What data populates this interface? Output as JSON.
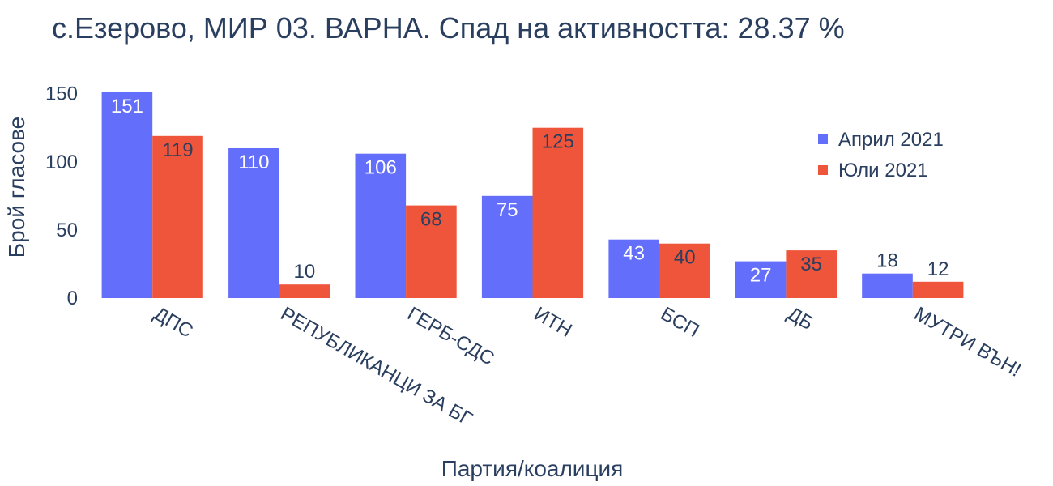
{
  "chart_data": {
    "type": "bar",
    "title": "с.Езерово, МИР 03. ВАРНА. Спад на активността: 28.37 %",
    "xlabel": "Партия/коалиция",
    "ylabel": "Брой гласове",
    "ylim": [
      0,
      151
    ],
    "yticks": [
      0,
      50,
      100,
      150
    ],
    "categories": [
      "ДПС",
      "РЕПУБЛИКАНЦИ ЗА БГ",
      "ГЕРБ-СДС",
      "ИТН",
      "БСП",
      "ДБ",
      "МУТРИ ВЪН!"
    ],
    "series": [
      {
        "name": "Април 2021",
        "color": "#636efa",
        "values": [
          151,
          110,
          106,
          75,
          43,
          27,
          18
        ]
      },
      {
        "name": "Юли 2021",
        "color": "#ef553b",
        "values": [
          119,
          10,
          68,
          125,
          40,
          35,
          12
        ]
      }
    ],
    "legend": "top-right",
    "grid": false
  }
}
